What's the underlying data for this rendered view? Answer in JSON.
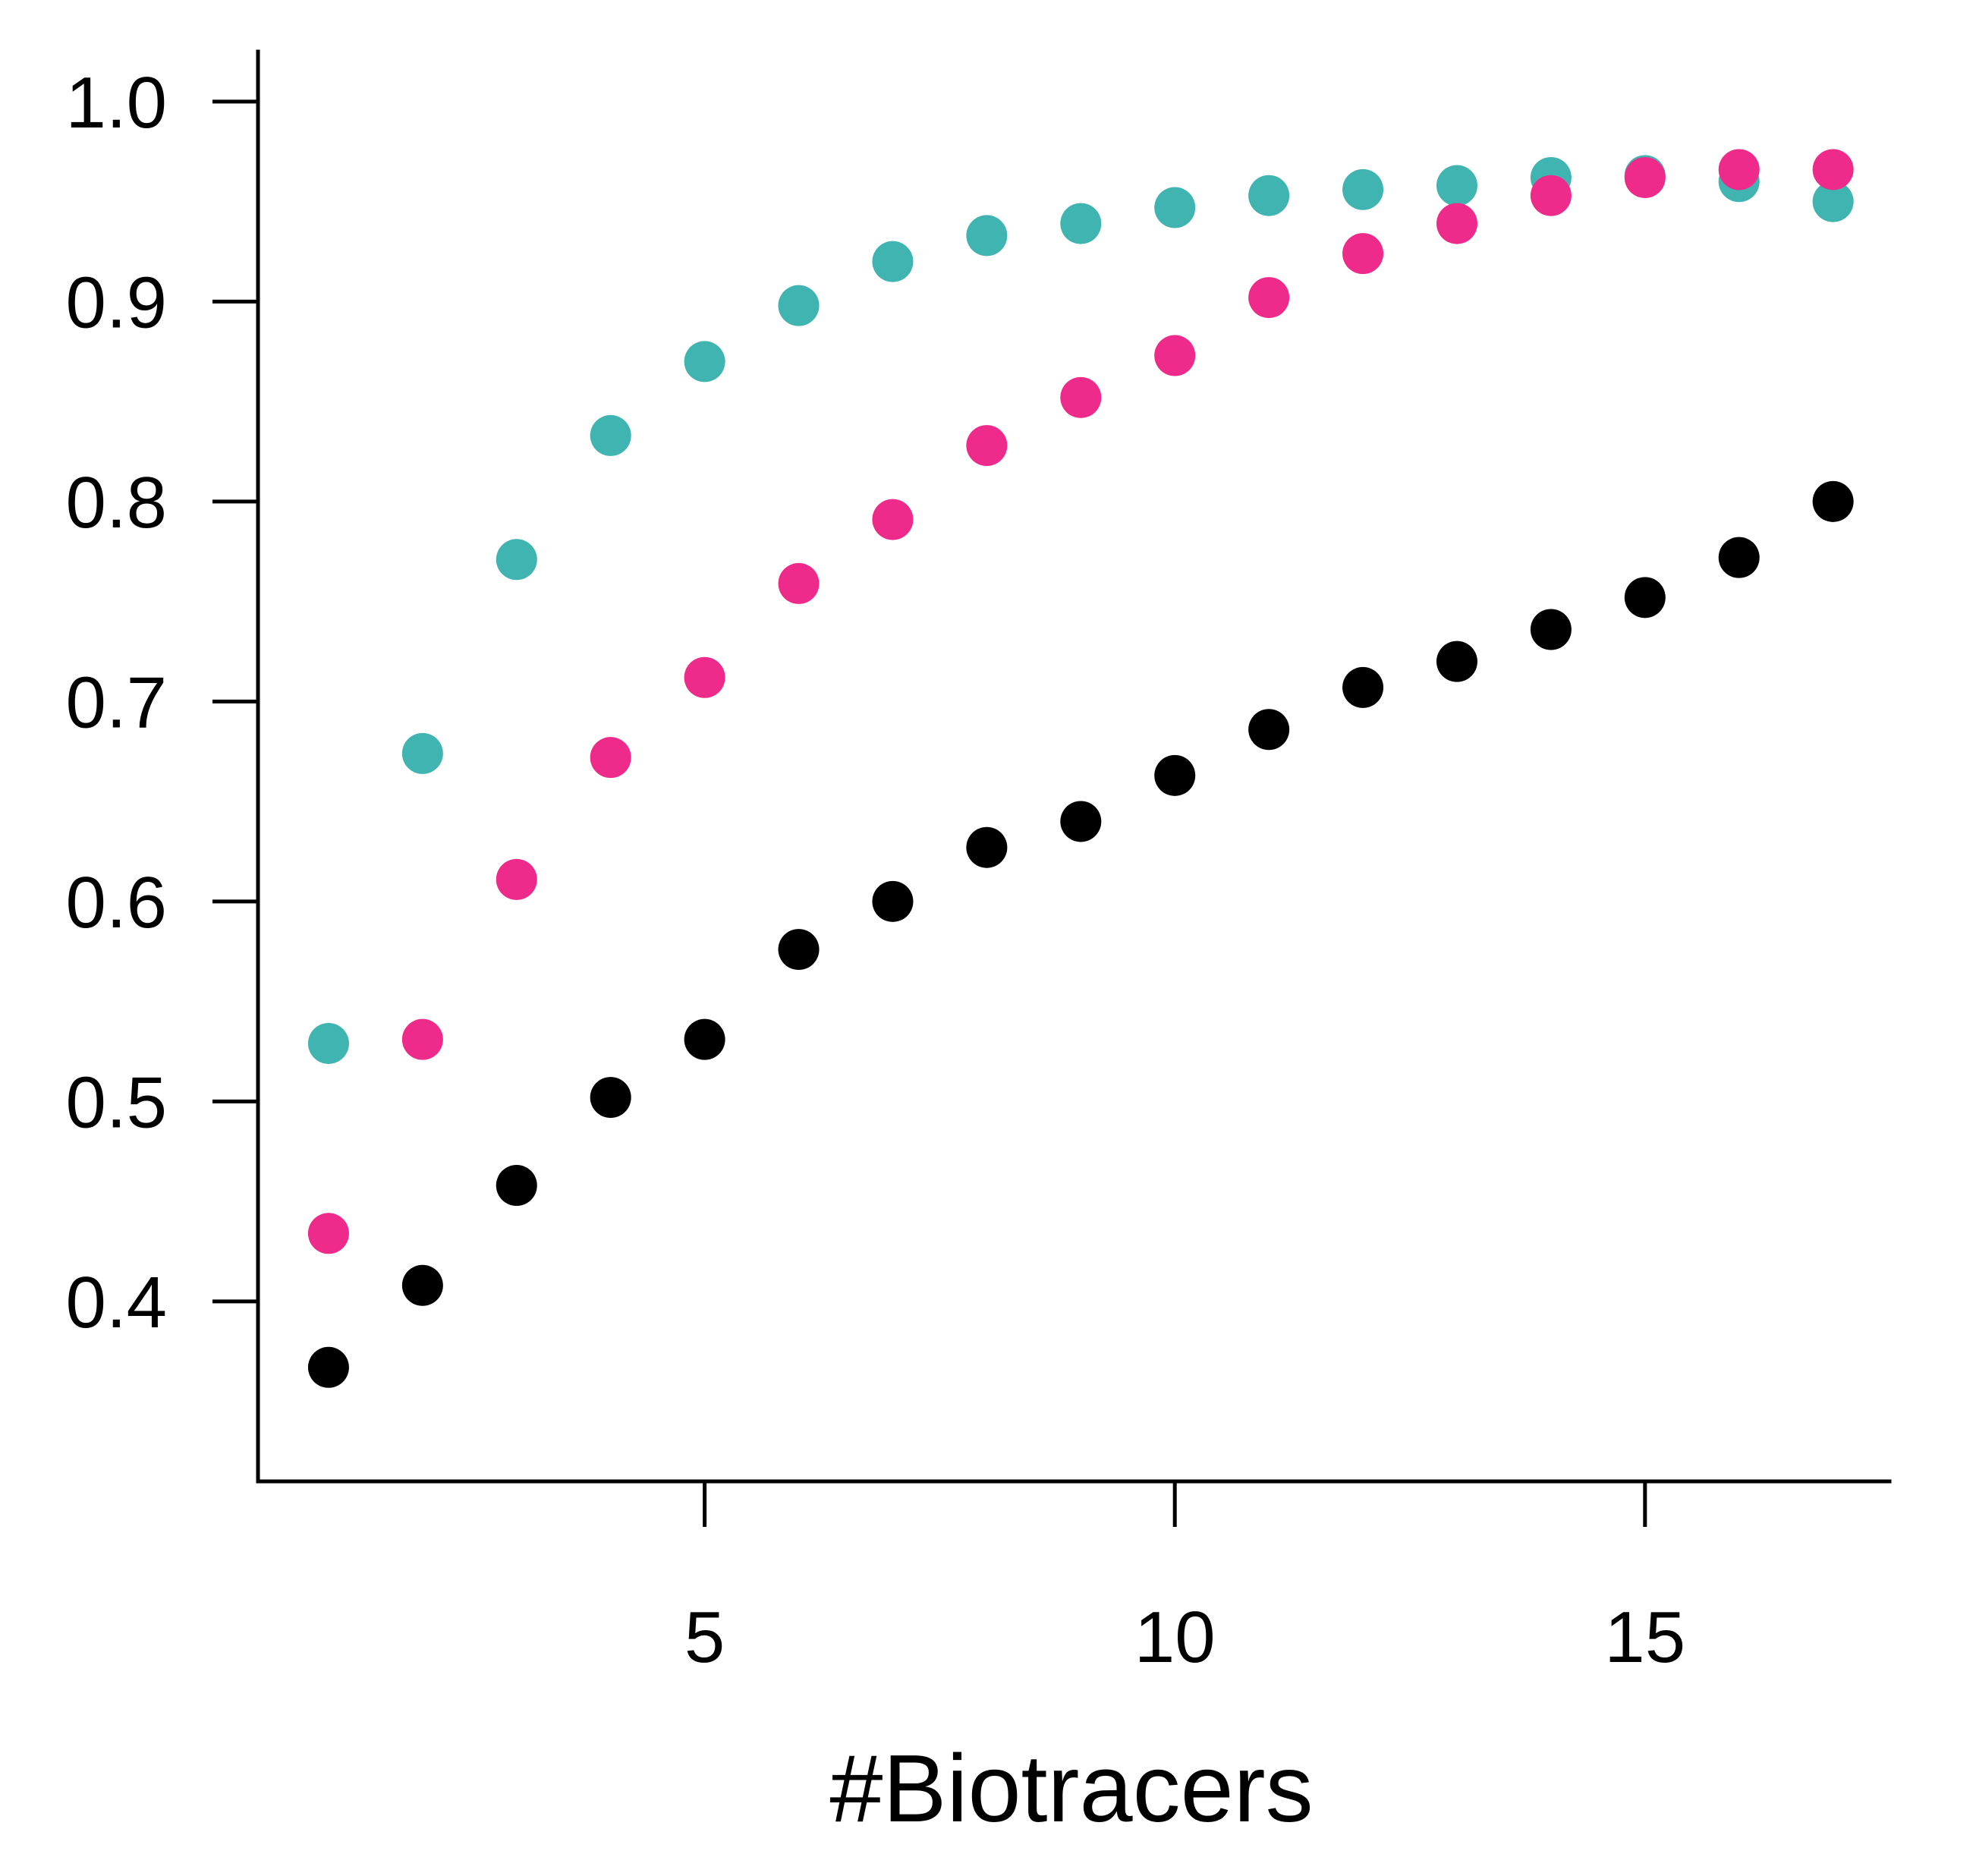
{
  "chart_data": {
    "type": "scatter",
    "title": "",
    "xlabel": "#Biotracers",
    "ylabel": "",
    "xlim": [
      0.25,
      17.6
    ],
    "ylim": [
      0.31,
      1.025
    ],
    "x_ticks": [
      5,
      10,
      15
    ],
    "y_ticks": [
      0.4,
      0.5,
      0.6,
      0.7,
      0.8,
      0.9,
      1.0
    ],
    "y_tick_labels": [
      "0.4",
      "0.5",
      "0.6",
      "0.7",
      "0.8",
      "0.9",
      "1.0"
    ],
    "grid": false,
    "legend": "none",
    "x": [
      1,
      2,
      3,
      4,
      5,
      6,
      7,
      8,
      9,
      10,
      11,
      12,
      13,
      14,
      15,
      16,
      17
    ],
    "series": [
      {
        "color": "#40b4b0",
        "values": [
          0.529,
          0.674,
          0.771,
          0.833,
          0.87,
          0.898,
          0.92,
          0.933,
          0.939,
          0.947,
          0.953,
          0.956,
          0.958,
          0.962,
          0.963,
          0.96,
          0.95
        ]
      },
      {
        "color": "#ee2a8a",
        "values": [
          0.434,
          0.531,
          0.611,
          0.672,
          0.712,
          0.759,
          0.791,
          0.828,
          0.852,
          0.873,
          0.902,
          0.924,
          0.939,
          0.953,
          0.962,
          0.966,
          0.966
        ]
      },
      {
        "color": "#000000",
        "values": [
          0.367,
          0.408,
          0.458,
          0.502,
          0.531,
          0.576,
          0.6,
          0.627,
          0.64,
          0.663,
          0.686,
          0.707,
          0.72,
          0.736,
          0.752,
          0.772,
          0.8
        ]
      }
    ]
  }
}
